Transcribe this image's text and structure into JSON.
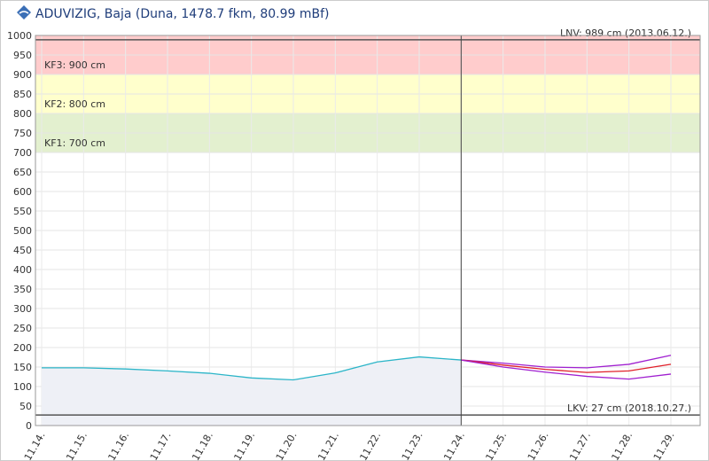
{
  "chart_data": {
    "type": "line",
    "title": "ADUVIZIG, Baja (Duna, 1478.7 fkm, 80.99 mBf)",
    "categories": [
      "11.14.",
      "11.15.",
      "11.16.",
      "11.17.",
      "11.18.",
      "11.19.",
      "11.20.",
      "11.21.",
      "11.22.",
      "11.23.",
      "11.24.",
      "11.25.",
      "11.26.",
      "11.27.",
      "11.28.",
      "11.29."
    ],
    "marker": "11.24.",
    "ylim": [
      0,
      1000
    ],
    "yticks": [
      0,
      50,
      100,
      150,
      200,
      250,
      300,
      350,
      400,
      450,
      500,
      550,
      600,
      650,
      700,
      750,
      800,
      850,
      900,
      950,
      1000
    ],
    "grid": true,
    "bands": [
      {
        "label": "KF3: 900 cm",
        "from": 900,
        "to": 1000,
        "color": "#ffcccc"
      },
      {
        "label": "KF2: 800 cm",
        "from": 800,
        "to": 900,
        "color": "#ffffcc"
      },
      {
        "label": "KF1: 700 cm",
        "from": 700,
        "to": 800,
        "color": "#e3f0cf"
      }
    ],
    "reference_lines": [
      {
        "label": "LNV: 989 cm (2013.06.12.)",
        "value": 989
      },
      {
        "label": "LKV: 27 cm (2018.10.27.)",
        "value": 27
      }
    ],
    "series": [
      {
        "color": "#2bb5c8",
        "fill": true,
        "values": [
          148,
          148,
          145,
          140,
          134,
          122,
          117,
          135,
          163,
          176,
          168,
          null,
          null,
          null,
          null,
          null
        ]
      },
      {
        "color": "#a020d0",
        "values": [
          null,
          null,
          null,
          null,
          null,
          null,
          null,
          null,
          null,
          null,
          168,
          160,
          150,
          148,
          157,
          180
        ]
      },
      {
        "color": "#e0202a",
        "values": [
          null,
          null,
          null,
          null,
          null,
          null,
          null,
          null,
          null,
          null,
          168,
          155,
          144,
          136,
          140,
          157
        ]
      },
      {
        "color": "#a020d0",
        "values": [
          null,
          null,
          null,
          null,
          null,
          null,
          null,
          null,
          null,
          null,
          168,
          150,
          137,
          126,
          119,
          132
        ]
      }
    ]
  }
}
